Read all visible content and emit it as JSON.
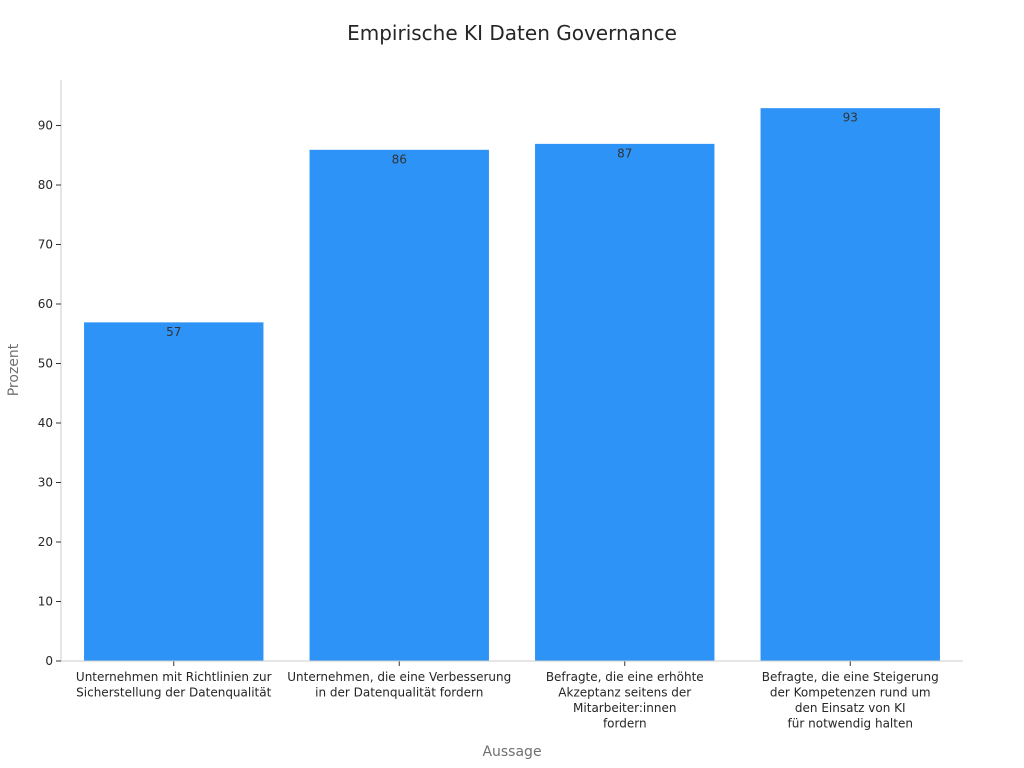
{
  "chart_data": {
    "type": "bar",
    "title": "Empirische KI Daten Governance",
    "xlabel": "Aussage",
    "ylabel": "Prozent",
    "categories": [
      [
        "Unternehmen mit Richtlinien zur",
        "Sicherstellung der Datenqualität"
      ],
      [
        "Unternehmen, die eine Verbesserung",
        "in der Datenqualität fordern"
      ],
      [
        "Befragte, die eine erhöhte",
        "Akzeptanz seitens der",
        "Mitarbeiter:innen",
        "fordern"
      ],
      [
        "Befragte, die eine Steigerung",
        "der Kompetenzen rund um",
        "den Einsatz von KI",
        "für notwendig halten"
      ]
    ],
    "values": [
      57,
      86,
      87,
      93
    ],
    "data_labels": [
      "57",
      "86",
      "87",
      "93"
    ],
    "yticks": [
      0,
      10,
      20,
      30,
      40,
      50,
      60,
      70,
      80,
      90
    ],
    "ylim": [
      0,
      97.65
    ],
    "grid": false,
    "legend": "none",
    "bar_color": "#2e93f7"
  }
}
